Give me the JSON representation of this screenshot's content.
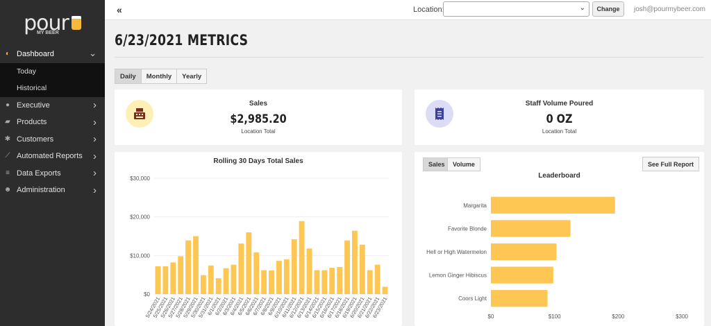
{
  "brand": {
    "logo_text": "pour",
    "logo_sub": "MY BEER"
  },
  "sidebar": {
    "items": [
      {
        "label": "Dashboard",
        "icon": "gauge-icon",
        "glyph": "◐",
        "expanded": true
      },
      {
        "label": "Executive",
        "icon": "globe-icon",
        "glyph": "●"
      },
      {
        "label": "Products",
        "icon": "folder-icon",
        "glyph": "▰"
      },
      {
        "label": "Customers",
        "icon": "person-icon",
        "glyph": "✱"
      },
      {
        "label": "Automated Reports",
        "icon": "chart-line-icon",
        "glyph": "⟋"
      },
      {
        "label": "Data Exports",
        "icon": "database-icon",
        "glyph": "≡"
      },
      {
        "label": "Administration",
        "icon": "users-cog-icon",
        "glyph": "☻"
      }
    ],
    "subitems": [
      {
        "label": "Today"
      },
      {
        "label": "Historical"
      }
    ]
  },
  "topbar": {
    "collapse_glyph": "«",
    "location_label": "Location:",
    "location_value": "",
    "change_label": "Change",
    "user_email": "josh@pourmybeer.com"
  },
  "main": {
    "title": "6/23/2021 METRICS",
    "periods": [
      "Daily",
      "Monthly",
      "Yearly"
    ],
    "active_period": "Daily"
  },
  "cards": {
    "sales": {
      "title": "Sales",
      "value": "$2,985.20",
      "sub": "Location Total",
      "icon": "cash-register-icon"
    },
    "staff": {
      "title": "Staff Volume Poured",
      "value": "0 OZ",
      "sub": "Location Total",
      "icon": "receipt-icon"
    }
  },
  "leaderboard": {
    "tabs": [
      "Sales",
      "Volume"
    ],
    "active_tab": "Sales",
    "full_report_label": "See Full Report"
  },
  "colors": {
    "bar": "#fec652",
    "sales_icon_bg": "#fdf0b5",
    "staff_icon_bg": "#dcdcf5",
    "accent": "#f5b93b"
  },
  "chart_data": [
    {
      "type": "bar",
      "title": "Rolling 30 Days Total Sales",
      "categories": [
        "5/24/2021",
        "5/25/2021",
        "5/26/2021",
        "5/27/2021",
        "5/28/2021",
        "5/29/2021",
        "5/30/2021",
        "5/31/2021",
        "6/1/2021",
        "6/2/2021",
        "6/3/2021",
        "6/4/2021",
        "6/5/2021",
        "6/6/2021",
        "6/7/2021",
        "6/8/2021",
        "6/9/2021",
        "6/10/2021",
        "6/11/2021",
        "6/12/2021",
        "6/13/2021",
        "6/14/2021",
        "6/15/2021",
        "6/16/2021",
        "6/17/2021",
        "6/18/2021",
        "6/19/2021",
        "6/20/2021",
        "6/21/2021",
        "6/22/2021",
        "6/23/2021"
      ],
      "values": [
        7200,
        7200,
        8200,
        9800,
        13900,
        15000,
        4900,
        7400,
        4100,
        6700,
        7600,
        13100,
        16000,
        10800,
        6200,
        6100,
        8600,
        9000,
        14200,
        18900,
        11800,
        6200,
        6200,
        6800,
        7000,
        13900,
        16400,
        12800,
        6200,
        7600,
        1900
      ],
      "ylim": [
        0,
        30000
      ],
      "yticks": [
        "$0",
        "$10,000",
        "$20,000",
        "$30,000"
      ],
      "ytick_values": [
        0,
        10000,
        20000,
        30000
      ],
      "grid": true
    },
    {
      "type": "bar",
      "orientation": "horizontal",
      "title": "Leaderboard",
      "categories": [
        "Margarita",
        "Favorite Blonde",
        "Hell or High Watermelon",
        "Lemon Ginger Hibiscus",
        "Coors Light"
      ],
      "values": [
        195,
        125,
        103,
        98,
        89
      ],
      "xlim": [
        0,
        300
      ],
      "xticks": [
        "$0",
        "$100",
        "$200",
        "$300"
      ],
      "xtick_values": [
        0,
        100,
        200,
        300
      ]
    }
  ]
}
